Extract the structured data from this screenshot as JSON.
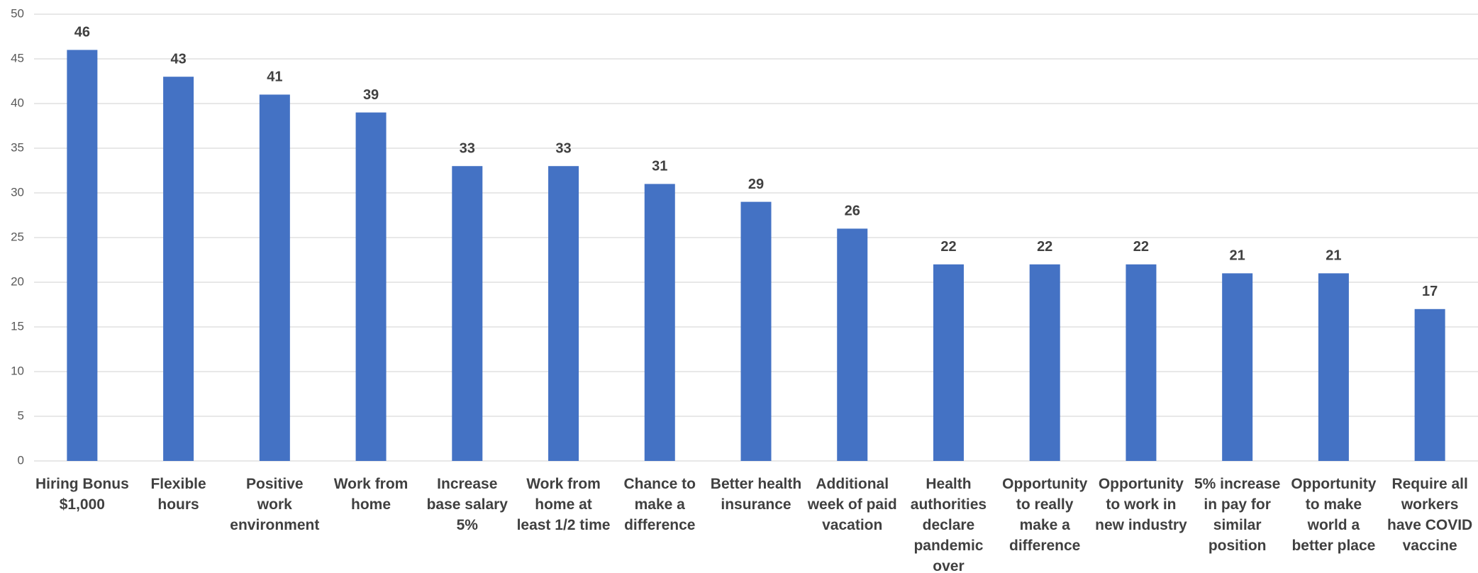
{
  "chart_data": {
    "type": "bar",
    "categories": [
      "Hiring Bonus $1,000",
      "Flexible hours",
      "Positive work environment",
      "Work from home",
      "Increase base salary 5%",
      "Work from home at least 1/2 time",
      "Chance to make a difference",
      "Better health insurance",
      "Additional week of paid vacation",
      "Health authorities declare pandemic over",
      "Opportunity to really make a difference",
      "Opportunity to work in new industry",
      "5% increase in pay for similar position",
      "Opportunity to make world a better place",
      "Require all workers have COVID vaccine"
    ],
    "values": [
      46,
      43,
      41,
      39,
      33,
      33,
      31,
      29,
      26,
      22,
      22,
      22,
      21,
      21,
      17
    ],
    "color": "#4472c4",
    "ylim": [
      0,
      50
    ],
    "yticks": [
      0,
      5,
      10,
      15,
      20,
      25,
      30,
      35,
      40,
      45,
      50
    ],
    "grid": true
  }
}
